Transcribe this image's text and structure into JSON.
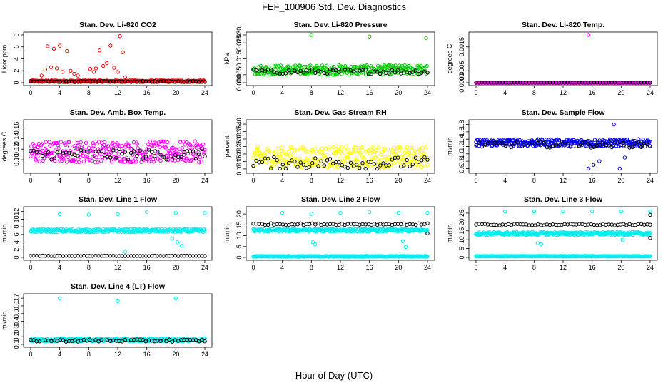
{
  "figure": {
    "title": "FEF_100906  Std. Dev. Diagnostics",
    "xlabel": "Hour of Day (UTC)"
  },
  "chart_data": [
    {
      "type": "scatter",
      "title": "Stan. Dev. Li-820 CO2",
      "ylabel": "Licor ppm",
      "xlim": [
        0,
        24
      ],
      "ylim": [
        0,
        8
      ],
      "xticks": [
        "0",
        "4",
        "8",
        "12",
        "16",
        "20",
        "24"
      ],
      "yticks": [
        "0",
        "2",
        "4",
        "6",
        "8"
      ],
      "series": [
        {
          "color": "#ff0000",
          "baseline": 0.25,
          "spread": 0.15,
          "outliers": [
            [
              1.5,
              1.2
            ],
            [
              2,
              2.2
            ],
            [
              2.3,
              6.1
            ],
            [
              2.8,
              2.6
            ],
            [
              3.2,
              5.7
            ],
            [
              3.6,
              2.4
            ],
            [
              4,
              6.2
            ],
            [
              4.4,
              1.8
            ],
            [
              5,
              5.3
            ],
            [
              5.5,
              2
            ],
            [
              6,
              1.5
            ],
            [
              6.5,
              1.2
            ],
            [
              8.2,
              2.3
            ],
            [
              8.7,
              1.8
            ],
            [
              9,
              2.4
            ],
            [
              9.5,
              5.4
            ],
            [
              10,
              2.8
            ],
            [
              10.5,
              3.3
            ],
            [
              11,
              6.2
            ],
            [
              11.5,
              2.5
            ],
            [
              12,
              1.8
            ],
            [
              12.3,
              7.8
            ],
            [
              12.7,
              5.1
            ],
            [
              13,
              0.9
            ]
          ]
        },
        {
          "color": "#000000",
          "baseline": 0.2,
          "spread": 0.08,
          "outliers": []
        }
      ]
    },
    {
      "type": "scatter",
      "title": "Stan. Dev. Li-820 Pressure",
      "ylabel": "kPa",
      "xlim": [
        0,
        24
      ],
      "ylim": [
        0,
        0.03
      ],
      "xticks": [
        "0",
        "4",
        "8",
        "12",
        "16",
        "20",
        "24"
      ],
      "yticks": [
        "0.000",
        "0.005",
        "0.015",
        "0.025",
        "0.030"
      ],
      "series": [
        {
          "color": "#00cc00",
          "baseline": 0.008,
          "spread": 0.003,
          "outliers": [
            [
              8,
              0.03
            ],
            [
              16,
              0.029
            ],
            [
              23.8,
              0.028
            ]
          ]
        },
        {
          "color": "#000000",
          "baseline": 0.007,
          "spread": 0.0015,
          "outliers": []
        }
      ]
    },
    {
      "type": "scatter",
      "title": "Stan. Dev. Li-820 Temp.",
      "ylabel": "degrees C",
      "xlim": [
        0,
        24
      ],
      "ylim": [
        0,
        0.002
      ],
      "xticks": [
        "0",
        "4",
        "8",
        "12",
        "16",
        "20",
        "24"
      ],
      "yticks": [
        "0.0000",
        "0.0005",
        "0.0015"
      ],
      "series": [
        {
          "color": "#ff00ff",
          "baseline": 0.0,
          "spread": 0.0,
          "outliers": [
            [
              15.5,
              0.002
            ],
            [
              0,
              0.0
            ]
          ]
        },
        {
          "color": "#000000",
          "baseline": 0.0,
          "spread": 0.0,
          "outliers": []
        }
      ]
    },
    {
      "type": "scatter",
      "title": "Stan. Dev. Amb. Box Temp.",
      "ylabel": "degrees C",
      "xlim": [
        0,
        24
      ],
      "ylim": [
        0.08,
        0.17
      ],
      "xticks": [
        "0",
        "4",
        "8",
        "12",
        "16",
        "20",
        "24"
      ],
      "yticks": [
        "0.10",
        "0.12",
        "0.14",
        "0.16"
      ],
      "series": [
        {
          "color": "#ff00ff",
          "baseline": 0.115,
          "spread": 0.02,
          "outliers": []
        },
        {
          "color": "#000000",
          "baseline": 0.11,
          "spread": 0.01,
          "outliers": []
        }
      ]
    },
    {
      "type": "scatter",
      "title": "Stan. Dev. Gas Stream RH",
      "ylabel": "percent",
      "xlim": [
        0,
        24
      ],
      "ylim": [
        0.09,
        0.41
      ],
      "xticks": [
        "0",
        "4",
        "8",
        "12",
        "16",
        "20",
        "24"
      ],
      "yticks": [
        "0.10",
        "0.15",
        "0.20",
        "0.25",
        "0.30",
        "0.35",
        "0.40"
      ],
      "series": [
        {
          "color": "#ffff00",
          "baseline": 0.18,
          "spread": 0.07,
          "outliers": []
        },
        {
          "color": "#000000",
          "baseline": 0.14,
          "spread": 0.04,
          "outliers": []
        }
      ]
    },
    {
      "type": "scatter",
      "title": "Stan. Dev. Sample Flow",
      "ylabel": "ml/min",
      "xlim": [
        0,
        24
      ],
      "ylim": [
        0.55,
        1.85
      ],
      "xticks": [
        "0",
        "4",
        "8",
        "12",
        "16",
        "20",
        "24"
      ],
      "yticks": [
        "0.6",
        "0.8",
        "1.0",
        "1.2",
        "1.4",
        "1.6",
        "1.8"
      ],
      "series": [
        {
          "color": "#0000ff",
          "baseline": 1.3,
          "spread": 0.1,
          "outliers": [
            [
              15.5,
              0.6
            ],
            [
              16.2,
              0.7
            ],
            [
              17,
              0.8
            ],
            [
              19.8,
              0.6
            ],
            [
              20.5,
              0.9
            ],
            [
              19,
              1.8
            ]
          ]
        },
        {
          "color": "#000000",
          "baseline": 1.25,
          "spread": 0.08,
          "outliers": []
        }
      ]
    },
    {
      "type": "scatter",
      "title": "Stan. Dev. Line 1 Flow",
      "ylabel": "ml/min",
      "xlim": [
        0,
        24
      ],
      "ylim": [
        0,
        12.5
      ],
      "xticks": [
        "0",
        "4",
        "8",
        "12",
        "16",
        "20",
        "24"
      ],
      "yticks": [
        "0",
        "2",
        "4",
        "6",
        "8",
        "10",
        "12"
      ],
      "series": [
        {
          "color": "#00eeee",
          "baseline": 7.0,
          "spread": 0.4,
          "outliers": [
            [
              4,
              11.3
            ],
            [
              8,
              11.2
            ],
            [
              12,
              11.3
            ],
            [
              13,
              1.5
            ],
            [
              16,
              11.9
            ],
            [
              20,
              11.6
            ],
            [
              19.5,
              5
            ],
            [
              20.2,
              4
            ],
            [
              20.8,
              3
            ],
            [
              24,
              11.6
            ]
          ]
        },
        {
          "color": "#000000",
          "baseline": 0.4,
          "spread": 0.05,
          "outliers": []
        }
      ]
    },
    {
      "type": "scatter",
      "title": "Stan. Dev. Line 2 Flow",
      "ylabel": "ml/min",
      "xlim": [
        0,
        24
      ],
      "ylim": [
        0,
        22
      ],
      "xticks": [
        "0",
        "4",
        "8",
        "12",
        "16",
        "20",
        "24"
      ],
      "yticks": [
        "0",
        "5",
        "10",
        "15",
        "20"
      ],
      "series": [
        {
          "color": "#00eeee",
          "baseline": 12.5,
          "spread": 0.6,
          "outliers": [
            [
              4,
              20.5
            ],
            [
              8,
              20
            ],
            [
              8.2,
              7
            ],
            [
              8.5,
              6
            ],
            [
              12,
              20.5
            ],
            [
              16,
              20.8
            ],
            [
              20,
              20.5
            ],
            [
              20.6,
              7.5
            ],
            [
              21,
              4.8
            ],
            [
              24,
              20.5
            ]
          ]
        },
        {
          "color": "#000000",
          "baseline": 15.3,
          "spread": 0.4,
          "outliers": [
            [
              24,
              11
            ]
          ]
        },
        {
          "color": "#00eeee",
          "baseline": 0.5,
          "spread": 0.2,
          "outliers": []
        }
      ]
    },
    {
      "type": "scatter",
      "title": "Stan. Dev. Line 3 Flow",
      "ylabel": "ml/min",
      "xlim": [
        0,
        24
      ],
      "ylim": [
        0,
        27
      ],
      "xticks": [
        "0",
        "4",
        "8",
        "12",
        "16",
        "20",
        "24"
      ],
      "yticks": [
        "0",
        "5",
        "10",
        "15",
        "20",
        "25"
      ],
      "series": [
        {
          "color": "#00eeee",
          "baseline": 13.5,
          "spread": 0.8,
          "outliers": [
            [
              4,
              26
            ],
            [
              8,
              26
            ],
            [
              8.5,
              8
            ],
            [
              9,
              7.5
            ],
            [
              12,
              26
            ],
            [
              16,
              26
            ],
            [
              20,
              26
            ],
            [
              20.2,
              10
            ],
            [
              24,
              26
            ]
          ]
        },
        {
          "color": "#000000",
          "baseline": 18.5,
          "spread": 0.4,
          "outliers": [
            [
              24,
              24
            ],
            [
              24,
              11
            ]
          ]
        },
        {
          "color": "#00eeee",
          "baseline": 0.7,
          "spread": 0.2,
          "outliers": []
        }
      ]
    },
    {
      "type": "scatter",
      "title": "Stan. Dev. Line 4 (LT) Flow",
      "ylabel": "ml/min",
      "xlim": [
        0,
        24
      ],
      "ylim": [
        0.1,
        0.72
      ],
      "xticks": [
        "0",
        "4",
        "8",
        "12",
        "16",
        "20",
        "24"
      ],
      "yticks": [
        "0.1",
        "0.2",
        "0.3",
        "0.4",
        "0.5",
        "0.6",
        "0.7"
      ],
      "series": [
        {
          "color": "#00eeee",
          "baseline": 0.16,
          "spread": 0.02,
          "outliers": [
            [
              4,
              0.7
            ],
            [
              12,
              0.66
            ],
            [
              20,
              0.7
            ]
          ]
        },
        {
          "color": "#000000",
          "baseline": 0.15,
          "spread": 0.015,
          "outliers": []
        }
      ]
    }
  ]
}
